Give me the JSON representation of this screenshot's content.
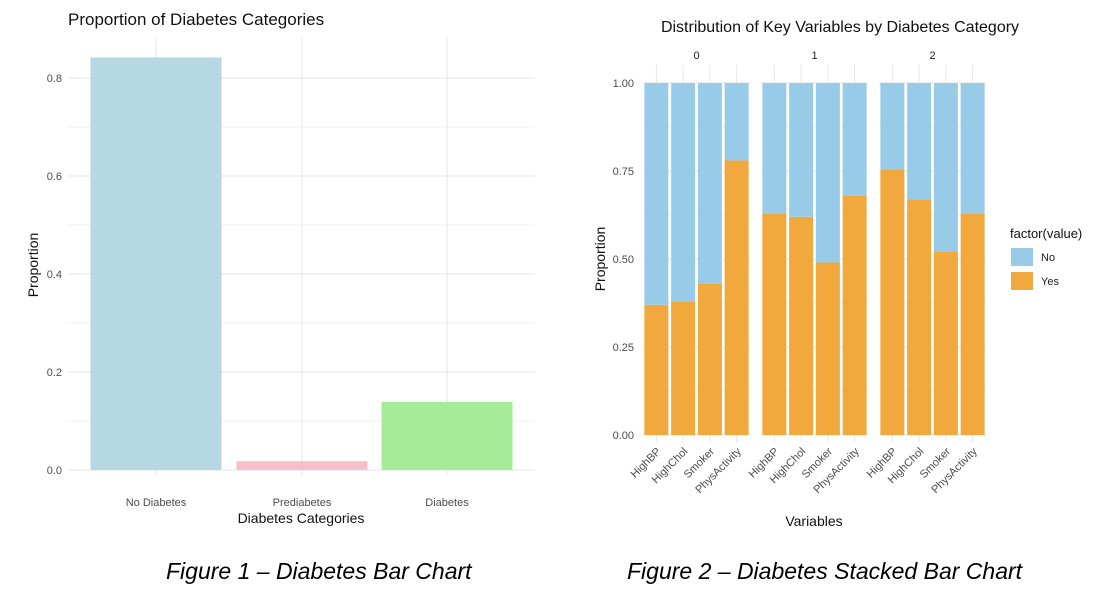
{
  "chart_data": [
    {
      "type": "bar",
      "title": "Proportion of Diabetes Categories",
      "xlabel": "Diabetes Categories",
      "ylabel": "Proportion",
      "categories": [
        "No Diabetes",
        "Prediabetes",
        "Diabetes"
      ],
      "values": [
        0.842,
        0.018,
        0.139
      ],
      "colors": [
        "#b6d8e4",
        "#f6c0ca",
        "#a5eb98"
      ],
      "yticks": [
        0.0,
        0.2,
        0.4,
        0.6,
        0.8
      ],
      "ytick_labels": [
        "0.0",
        "0.2",
        "0.4",
        "0.6",
        "0.8"
      ],
      "ylim": [
        -0.008,
        0.88
      ],
      "grid": true,
      "legend": "none"
    },
    {
      "type": "bar",
      "stacked": true,
      "faceted": true,
      "title": "Distribution of Key Variables by Diabetes Category",
      "xlabel": "Variables",
      "ylabel": "Proportion",
      "facets": [
        "0",
        "1",
        "2"
      ],
      "categories": [
        "HighBP",
        "HighChol",
        "Smoker",
        "PhysActivity"
      ],
      "series": [
        {
          "name": "No",
          "color": "#97cbe8",
          "values": [
            [
              0.63,
              0.62,
              0.57,
              0.22
            ],
            [
              0.37,
              0.38,
              0.51,
              0.32
            ],
            [
              0.245,
              0.33,
              0.48,
              0.37
            ]
          ]
        },
        {
          "name": "Yes",
          "color": "#f1a83c",
          "values": [
            [
              0.37,
              0.38,
              0.43,
              0.78
            ],
            [
              0.63,
              0.62,
              0.49,
              0.68
            ],
            [
              0.755,
              0.67,
              0.52,
              0.63
            ]
          ]
        }
      ],
      "yticks": [
        0.0,
        0.25,
        0.5,
        0.75,
        1.0
      ],
      "ytick_labels": [
        "0.00",
        "0.25",
        "0.50",
        "0.75",
        "1.00"
      ],
      "ylim": [
        -0.04,
        1.06
      ],
      "grid": true,
      "legend_title": "factor(value)",
      "legend": "right"
    }
  ],
  "captions": {
    "figure1": "Figure 1 – Diabetes Bar Chart",
    "figure2": "Figure 2 – Diabetes Stacked Bar Chart"
  }
}
